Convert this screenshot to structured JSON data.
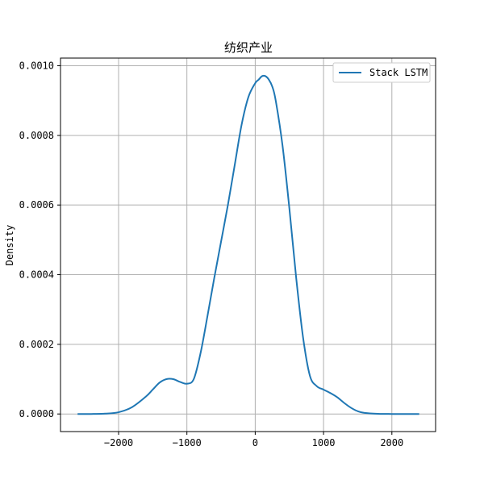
{
  "chart_data": {
    "type": "line",
    "title": "纺织产业",
    "xlabel": "",
    "ylabel": "Density",
    "xlim": [
      -2850,
      2640
    ],
    "ylim": [
      -5.05e-05,
      0.001022
    ],
    "x_ticks": [
      -2000,
      -1000,
      0,
      1000,
      2000
    ],
    "x_tick_labels": [
      "−2000",
      "−1000",
      "0",
      "1000",
      "2000"
    ],
    "y_ticks": [
      0,
      0.0002,
      0.0004,
      0.0006,
      0.0008,
      0.001
    ],
    "y_tick_labels": [
      "0.0000",
      "0.0002",
      "0.0004",
      "0.0006",
      "0.0008",
      "0.0010"
    ],
    "grid": true,
    "legend_position": "top-right",
    "series": [
      {
        "name": "Stack LSTM",
        "color": "#1f77b4",
        "x": [
          -2600,
          -2400,
          -2200,
          -2000,
          -1800,
          -1600,
          -1500,
          -1400,
          -1300,
          -1200,
          -1100,
          -1000,
          -900,
          -800,
          -700,
          -600,
          -500,
          -400,
          -300,
          -200,
          -100,
          0,
          50,
          100,
          150,
          200,
          250,
          300,
          400,
          500,
          600,
          700,
          800,
          900,
          1000,
          1100,
          1200,
          1300,
          1400,
          1500,
          1600,
          1800,
          2000,
          2200,
          2400
        ],
        "y": [
          0.0,
          0.0,
          1e-06,
          5e-06,
          2e-05,
          5e-05,
          7e-05,
          9e-05,
          0.0001,
          0.0001,
          9.2e-05,
          8.7e-05,
          0.0001,
          0.000175,
          0.00028,
          0.00039,
          0.000495,
          0.0006,
          0.000715,
          0.00083,
          0.00091,
          0.00095,
          0.00096,
          0.00097,
          0.00097,
          0.00096,
          0.00094,
          0.0009,
          0.00077,
          0.00059,
          0.00039,
          0.00022,
          0.00011,
          8e-05,
          7e-05,
          6e-05,
          4.8e-05,
          3.2e-05,
          1.8e-05,
          8e-06,
          3e-06,
          5e-07,
          0.0,
          0.0,
          0.0
        ]
      }
    ]
  }
}
